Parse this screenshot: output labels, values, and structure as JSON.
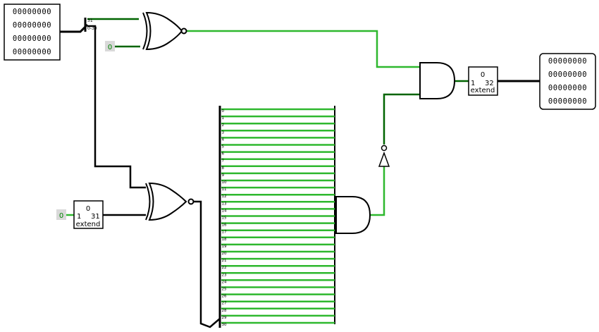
{
  "colors": {
    "wire_on": "#2eb82e",
    "wire_dark": "#006400",
    "wire_bus": "#000000",
    "gate_stroke": "#000000",
    "pin_bg": "#d9d9d9",
    "const_text": "#008000"
  },
  "input_probe": {
    "rows": [
      "00000000",
      "00000000",
      "00000000",
      "00000000"
    ]
  },
  "output_probe": {
    "rows": [
      "00000000",
      "00000000",
      "00000000",
      "00000000"
    ]
  },
  "splitter_top": {
    "labels": [
      "31",
      "0-30"
    ]
  },
  "const_top": {
    "value": "0"
  },
  "const_bottom": {
    "value": "0"
  },
  "extender_bottom": {
    "in_value": "0",
    "in_width": "1",
    "out_width": "31",
    "label": "extend"
  },
  "extender_right": {
    "in_value": "0",
    "in_width": "1",
    "out_width": "32",
    "label": "extend"
  },
  "splitter_big": {
    "labels": [
      "0",
      "1",
      "2",
      "3",
      "4",
      "5",
      "6",
      "7",
      "8",
      "9",
      "10",
      "11",
      "12",
      "13",
      "14",
      "15",
      "16",
      "17",
      "18",
      "19",
      "20",
      "21",
      "22",
      "23",
      "24",
      "25",
      "26",
      "27",
      "28",
      "29",
      "30"
    ]
  }
}
